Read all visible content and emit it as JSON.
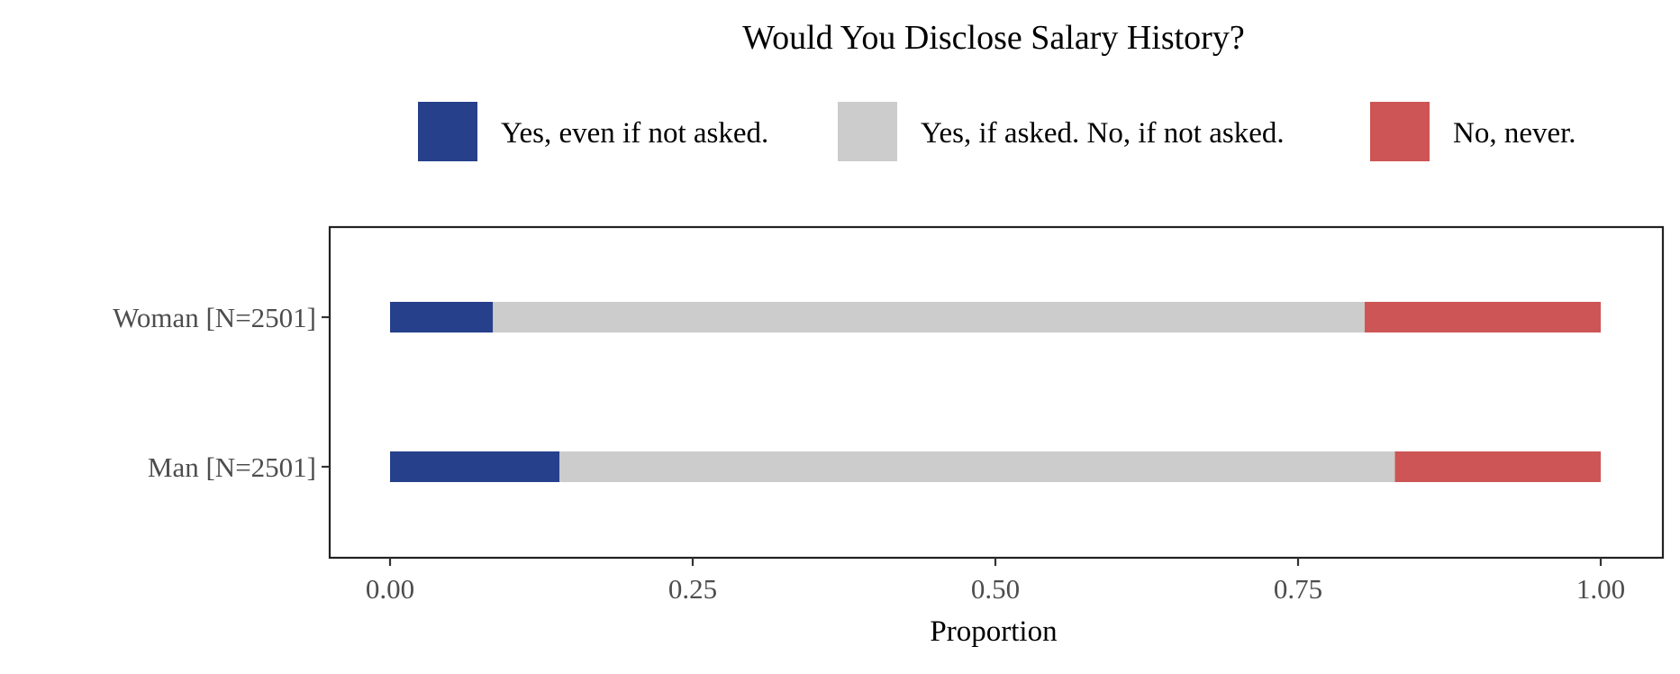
{
  "chart_data": {
    "type": "bar",
    "orientation": "horizontal",
    "stacked": true,
    "title": "Would You Disclose Salary History?",
    "xlabel": "Proportion",
    "ylabel": "",
    "xlim": [
      0,
      1
    ],
    "x_ticks": [
      "0.00",
      "0.25",
      "0.50",
      "0.75",
      "1.00"
    ],
    "categories": [
      "Woman [N=2501]",
      "Man [N=2501]"
    ],
    "series": [
      {
        "name": "Yes, even if not asked.",
        "color": "#27408b",
        "values": [
          0.085,
          0.14
        ]
      },
      {
        "name": "Yes, if asked. No, if not asked.",
        "color": "#cccccc",
        "values": [
          0.72,
          0.69
        ]
      },
      {
        "name": "No, never.",
        "color": "#cd5555",
        "values": [
          0.195,
          0.17
        ]
      }
    ],
    "legend_position": "top",
    "grid": false
  }
}
